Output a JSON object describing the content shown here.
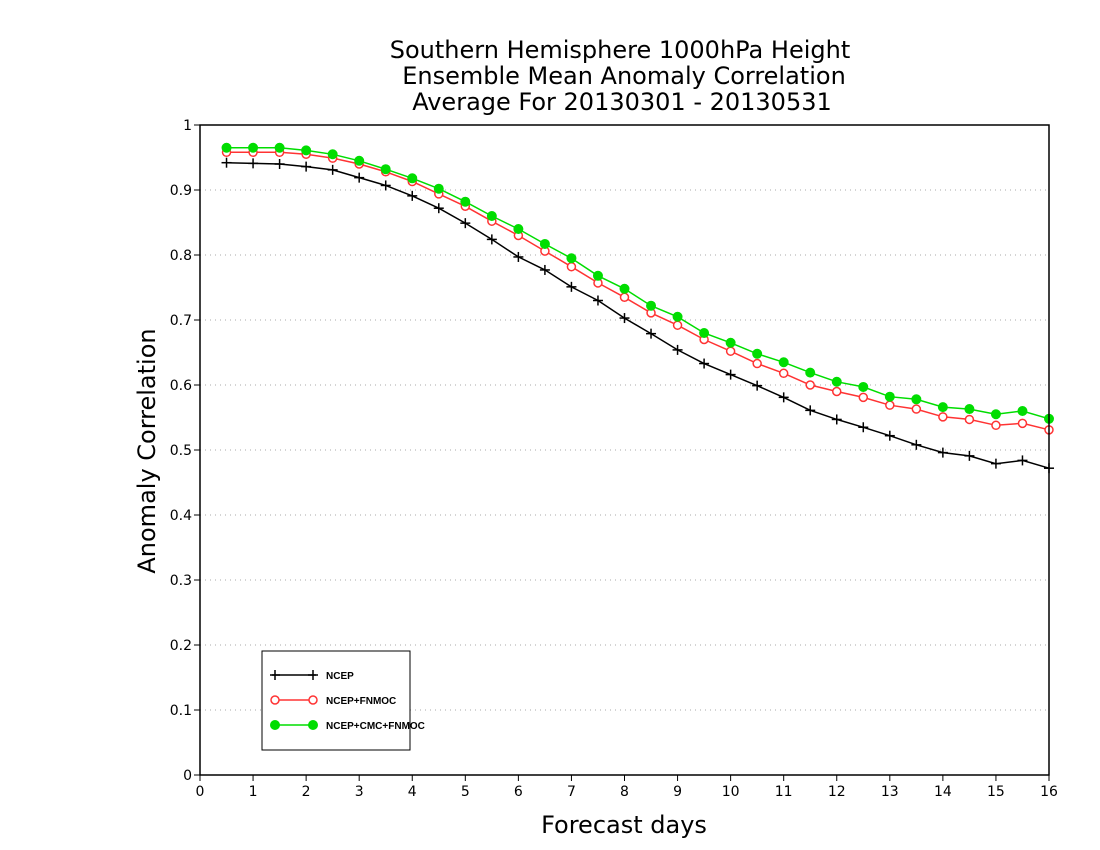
{
  "chart_data": {
    "type": "line",
    "title_lines": [
      "Southern Hemisphere 1000hPa Height",
      "Ensemble Mean Anomaly Correlation",
      "Average For 20130301 - 20130531"
    ],
    "xlabel": "Forecast days",
    "ylabel": "Anomaly Correlation",
    "xlim": [
      0,
      16
    ],
    "ylim": [
      0,
      1
    ],
    "x_ticks": [
      "0",
      "1",
      "2",
      "3",
      "4",
      "5",
      "6",
      "7",
      "8",
      "9",
      "10",
      "11",
      "12",
      "13",
      "14",
      "15",
      "16"
    ],
    "y_ticks": [
      "0",
      "0.1",
      "0.2",
      "0.3",
      "0.4",
      "0.5",
      "0.6",
      "0.7",
      "0.8",
      "0.9",
      "1"
    ],
    "grid": "horizontal-dotted",
    "legend_position": "bottom-left",
    "x": [
      0.5,
      1,
      1.5,
      2,
      2.5,
      3,
      3.5,
      4,
      4.5,
      5,
      5.5,
      6,
      6.5,
      7,
      7.5,
      8,
      8.5,
      9,
      9.5,
      10,
      10.5,
      11,
      11.5,
      12,
      12.5,
      13,
      13.5,
      14,
      14.5,
      15,
      15.5,
      16
    ],
    "series": [
      {
        "name": "NCEP",
        "color": "#000000",
        "marker": "plus",
        "values": [
          0.942,
          0.941,
          0.94,
          0.936,
          0.931,
          0.919,
          0.907,
          0.891,
          0.872,
          0.849,
          0.824,
          0.797,
          0.777,
          0.751,
          0.73,
          0.703,
          0.679,
          0.654,
          0.633,
          0.616,
          0.599,
          0.581,
          0.561,
          0.547,
          0.535,
          0.522,
          0.508,
          0.496,
          0.491,
          0.479,
          0.484,
          0.472
        ]
      },
      {
        "name": "NCEP+FNMOC",
        "color": "#ff3333",
        "marker": "open-circle",
        "values": [
          0.958,
          0.958,
          0.958,
          0.955,
          0.949,
          0.94,
          0.928,
          0.913,
          0.894,
          0.875,
          0.852,
          0.83,
          0.806,
          0.782,
          0.757,
          0.735,
          0.711,
          0.692,
          0.67,
          0.652,
          0.633,
          0.618,
          0.6,
          0.59,
          0.581,
          0.569,
          0.563,
          0.551,
          0.547,
          0.538,
          0.541,
          0.531
        ]
      },
      {
        "name": "NCEP+CMC+FNMOC",
        "color": "#00dd00",
        "marker": "filled-circle",
        "values": [
          0.965,
          0.965,
          0.965,
          0.961,
          0.955,
          0.945,
          0.932,
          0.918,
          0.902,
          0.882,
          0.86,
          0.84,
          0.817,
          0.795,
          0.768,
          0.748,
          0.722,
          0.705,
          0.68,
          0.665,
          0.648,
          0.635,
          0.619,
          0.605,
          0.597,
          0.582,
          0.578,
          0.566,
          0.563,
          0.555,
          0.56,
          0.548
        ]
      }
    ]
  }
}
